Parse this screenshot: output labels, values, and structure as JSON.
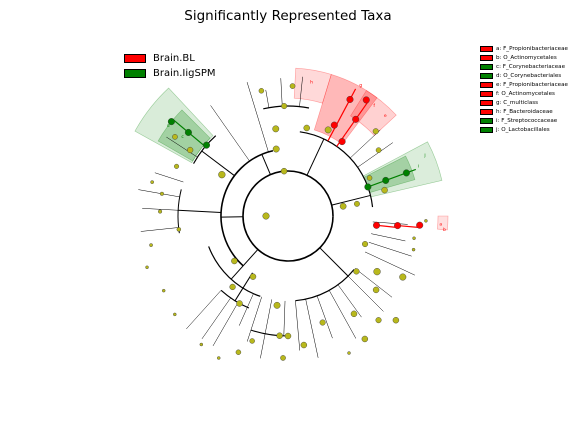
{
  "chart_data": {
    "type": "cladogram",
    "title": "Significantly Represented Taxa",
    "groups": [
      {
        "name": "Brain.BL",
        "color": "#ff0000"
      },
      {
        "name": "Brain.IigSPM",
        "color": "#008000"
      }
    ],
    "clades": [
      {
        "key": "a",
        "label": "a: F_Propionibacteriaceae",
        "group": "Brain.BL"
      },
      {
        "key": "b",
        "label": "b: O_Actinomycetales",
        "group": "Brain.BL"
      },
      {
        "key": "c",
        "label": "c: F_Corynebacteriaceae",
        "group": "Brain.IigSPM"
      },
      {
        "key": "d",
        "label": "d: O_Corynebacteriales",
        "group": "Brain.IigSPM"
      },
      {
        "key": "e",
        "label": "e: F_Propionibacteriaceae",
        "group": "Brain.BL"
      },
      {
        "key": "f",
        "label": "f: O_Actinomycetales",
        "group": "Brain.BL"
      },
      {
        "key": "g",
        "label": "g: C_multiclass",
        "group": "Brain.BL"
      },
      {
        "key": "h",
        "label": "h: F_Bacteroidaceae",
        "group": "Brain.BL"
      },
      {
        "key": "i",
        "label": "i: F_Streptococcaceae",
        "group": "Brain.IigSPM"
      },
      {
        "key": "j",
        "label": "j: O_Lactobacillales",
        "group": "Brain.IigSPM"
      }
    ],
    "colors": {
      "node_default": "#b8b81c",
      "enriched_red": "#ff0000",
      "enriched_green": "#008000"
    }
  }
}
